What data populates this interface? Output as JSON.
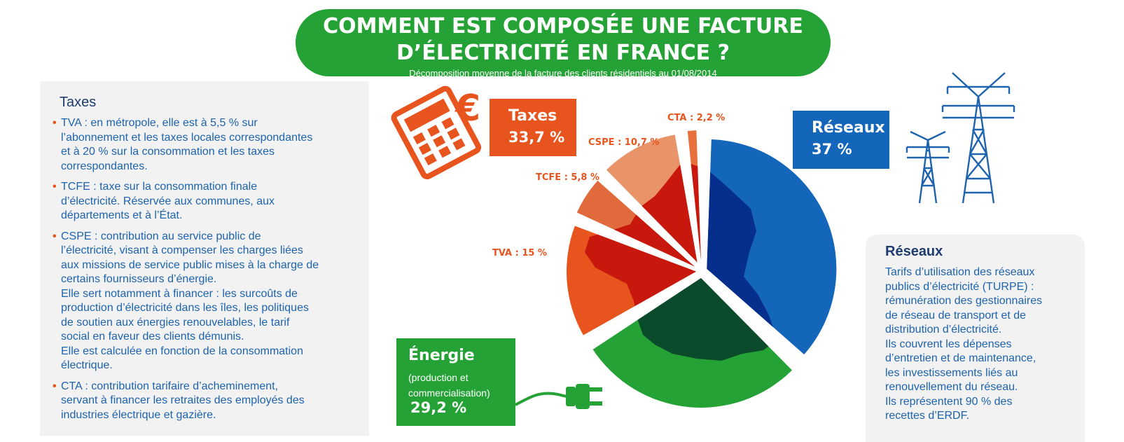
{
  "header": {
    "title_line1": "COMMENT EST COMPOSÉE UNE FACTURE",
    "title_line2": "D’ÉLECTRICITÉ EN FRANCE ?",
    "subtitle": "Décomposition moyenne de la facture des clients résidentiels au 01/08/2014"
  },
  "taxes_panel": {
    "heading": "Taxes",
    "items": [
      {
        "bullet": "•",
        "code": "TVA",
        "text": "TVA  : en métropole, elle est à 5,5 % sur\nl’abonnement et les taxes locales correspondantes\net à 20 % sur la consommation et les taxes\ncorrespondantes."
      },
      {
        "bullet": "•",
        "code": "TCFE",
        "text": "TCFE  : taxe sur la consommation finale\nd’électricité. Réservée aux communes, aux\ndépartements et à l’État."
      },
      {
        "bullet": "•",
        "code": "CSPE",
        "text": "CSPE  : contribution au service public de\nl’électricité, visant à compenser les charges liées\naux missions de service public mises à la charge de\ncertains fournisseurs d’énergie.\nElle sert notamment à financer : les surcoûts de\nproduction d’électricité dans les îles, les politiques\nde soutien aux énergies renouvelables, le tarif\nsocial en faveur des clients démunis.\nElle est calculée en fonction de la consommation\nélectrique."
      },
      {
        "bullet": "•",
        "code": "CTA",
        "text": "CTA  : contribution tarifaire d’acheminement,\nservant à financer les retraites des employés des\nindustries électrique et gazière."
      }
    ]
  },
  "reseaux_panel": {
    "heading": "Réseaux",
    "text": "Tarifs d’utilisation des réseaux\npublics d’électricité (TURPE) :\nrémunération des gestionnaires\nde réseau de transport et de\ndistribution d’électricité.\nIls couvrent les dépenses\nd’entretien et de maintenance,\nles investissements liés au\nrenouvellement du réseau.\nIls représentent 90 % des\nrecettes d’ERDF."
  },
  "boxes": {
    "taxes": {
      "label": "Taxes",
      "value": "33,7 %"
    },
    "reseaux": {
      "label": "Réseaux",
      "value": "37 %"
    },
    "energie": {
      "label": "Énergie",
      "sub": "(production et\ncommercialisation)",
      "value": "29,2 %"
    }
  },
  "slice_labels": {
    "cta": "CTA : 2,2 %",
    "cspe": "CSPE : 10,7 %",
    "tcfe": "TCFE : 5,8 %",
    "tva": "TVA : 15 %"
  },
  "icons": [
    "calculator-euro-icon",
    "pylons-icon",
    "plug-icon",
    "france-map-icon"
  ],
  "colors": {
    "green": "#25a236",
    "blue": "#1366b9",
    "orange": "#e8541e",
    "tva": "#e8541e",
    "tcfe": "#e06a3c",
    "cspe": "#e99468",
    "cta": "#e8703d",
    "map_blue": "#062e8c",
    "map_green": "#0b4a2b",
    "map_red": "#c8180e"
  },
  "chart_data": {
    "type": "pie",
    "title": "COMMENT EST COMPOSÉE UNE FACTURE D’ÉLECTRICITÉ EN FRANCE ?",
    "subtitle": "Décomposition moyenne de la facture des clients résidentiels au 01/08/2014",
    "slices": [
      {
        "name": "Réseaux",
        "value": 37,
        "group": "Réseaux"
      },
      {
        "name": "Énergie",
        "value": 29.2,
        "group": "Énergie"
      },
      {
        "name": "TVA",
        "value": 15,
        "group": "Taxes"
      },
      {
        "name": "TCFE",
        "value": 5.8,
        "group": "Taxes"
      },
      {
        "name": "CSPE",
        "value": 10.7,
        "group": "Taxes"
      },
      {
        "name": "CTA",
        "value": 2.2,
        "group": "Taxes"
      }
    ],
    "groups": [
      {
        "name": "Réseaux",
        "value": 37
      },
      {
        "name": "Énergie",
        "value": 29.2
      },
      {
        "name": "Taxes",
        "value": 33.7
      }
    ]
  }
}
